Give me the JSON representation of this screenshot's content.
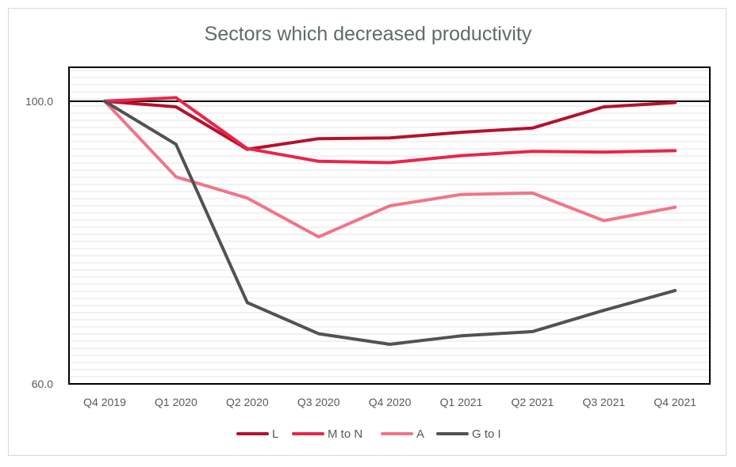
{
  "chart_data": {
    "type": "line",
    "title": "Sectors which decreased productivity",
    "xlabel": "",
    "ylabel": "",
    "categories": [
      "Q4 2019",
      "Q1 2020",
      "Q2 2020",
      "Q3 2020",
      "Q4 2020",
      "Q1 2021",
      "Q2 2021",
      "Q3 2021",
      "Q4 2021"
    ],
    "y_ticks": [
      {
        "value": 100,
        "label": "100.0"
      },
      {
        "value": 60,
        "label": "60.0"
      }
    ],
    "ylim": [
      60,
      104.8
    ],
    "grid": "minor horizontal lines",
    "reference_line": 100,
    "legend_position": "bottom",
    "series": [
      {
        "name": "L",
        "color": "#b5112e",
        "values": [
          100.0,
          99.2,
          93.2,
          94.7,
          94.8,
          95.6,
          96.2,
          99.2,
          99.8
        ]
      },
      {
        "name": "M to N",
        "color": "#e8264a",
        "values": [
          100.0,
          100.5,
          93.3,
          91.5,
          91.3,
          92.3,
          92.9,
          92.8,
          93.0
        ]
      },
      {
        "name": "A",
        "color": "#f07588",
        "values": [
          100.0,
          89.3,
          86.3,
          80.8,
          85.2,
          86.8,
          87.0,
          83.1,
          85.0
        ]
      },
      {
        "name": "G to I",
        "color": "#525252",
        "values": [
          100.0,
          93.9,
          71.5,
          67.1,
          65.6,
          66.8,
          67.4,
          70.4,
          73.2
        ]
      }
    ]
  }
}
